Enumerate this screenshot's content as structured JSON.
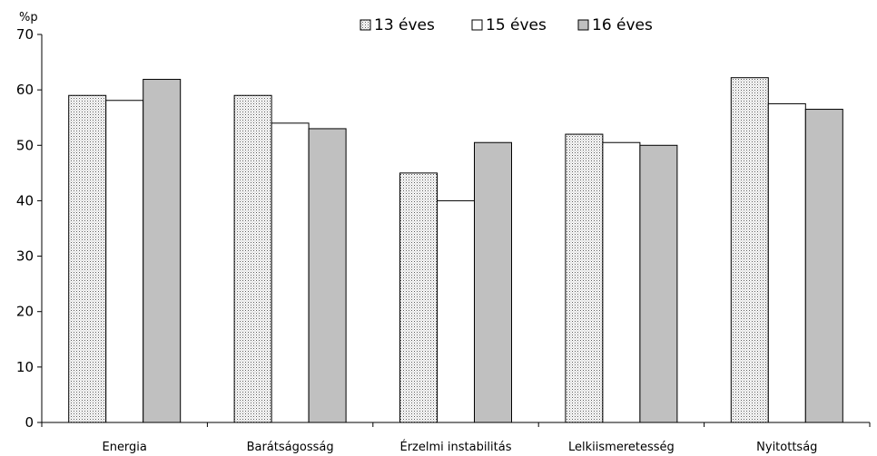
{
  "chart_data": {
    "type": "bar",
    "title": "",
    "ylabel": "%p",
    "xlabel": "",
    "ylim": [
      0,
      70
    ],
    "yticks": [
      0,
      10,
      20,
      30,
      40,
      50,
      60,
      70
    ],
    "grid": false,
    "legend_position": "top-right",
    "categories": [
      "Energia",
      "Barátságosság",
      "Érzelmi instabilitás",
      "Lelkiismeretesség",
      "Nyitottság"
    ],
    "series": [
      {
        "name": "13 éves",
        "fill": "dotted",
        "color": "#ffffff",
        "values": [
          59,
          59,
          45,
          52,
          62.2
        ]
      },
      {
        "name": "15 éves",
        "fill": "solid",
        "color": "#ffffff",
        "values": [
          58.1,
          54,
          40,
          50.5,
          57.5
        ]
      },
      {
        "name": "16 éves",
        "fill": "solid",
        "color": "#c0c0c0",
        "values": [
          61.9,
          53,
          50.5,
          50,
          56.5
        ]
      }
    ]
  }
}
